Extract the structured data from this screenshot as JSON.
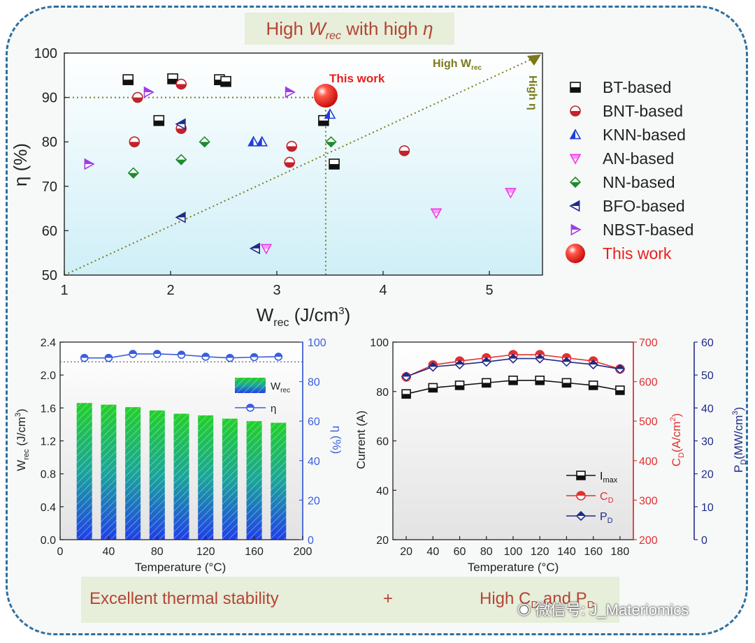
{
  "banner_top": {
    "prefix": "High ",
    "w": "W",
    "w_sub": "rec",
    "mid": " with high ",
    "eta": "η"
  },
  "banner_bottom": {
    "left": "Excellent thermal stability",
    "plus": "+",
    "right_prefix": "High C",
    "right_c_sub": "D",
    "right_and": " and P",
    "right_p_sub": "D"
  },
  "watermark": {
    "text": "微信号: J_Materiomics"
  },
  "colors": {
    "frame": "#2e6f9f",
    "banner_bg": "#e7eed9",
    "banner_text": "#b44437",
    "guide": "#7a7a1a",
    "bt": "#111111",
    "bnt": "#c2222a",
    "knn": "#1f3fd8",
    "an": "#ef36e8",
    "nn": "#1f8a2f",
    "bfo": "#1f2b88",
    "nbst": "#a23ae8",
    "this_work": "#e8201c",
    "eta_line": "#3a5ee0",
    "imax": "#111111",
    "cd": "#e23030",
    "pd": "#1f2b88"
  },
  "chart_data": [
    {
      "type": "scatter",
      "title": "",
      "xlabel": "W",
      "xlabel_sub": "rec",
      "xlabel_unit": " (J/cm",
      "xlabel_sup": "3",
      "xlabel_close": ")",
      "ylabel": "η (%)",
      "xlim": [
        1,
        5.5
      ],
      "ylim": [
        50,
        100
      ],
      "xticks": [
        "1",
        "2",
        "3",
        "4",
        "5"
      ],
      "yticks": [
        "50",
        "60",
        "70",
        "80",
        "90",
        "100"
      ],
      "annotations": {
        "this_work": "This work",
        "high_w": "High W",
        "high_w_sub": "rec",
        "high_eta": "High η"
      },
      "guides": {
        "eta_line": 90,
        "w_line": 3.46
      },
      "legend_position": "right",
      "series": [
        {
          "name": "BT-based",
          "marker": "square-half",
          "points": [
            [
              1.6,
              94
            ],
            [
              2.02,
              94.2
            ],
            [
              2.46,
              94
            ],
            [
              2.52,
              93.6
            ],
            [
              1.89,
              84.8
            ],
            [
              3.44,
              84.8
            ],
            [
              3.54,
              75
            ]
          ]
        },
        {
          "name": "BNT-based",
          "marker": "circle-half",
          "points": [
            [
              1.69,
              90
            ],
            [
              2.1,
              93
            ],
            [
              2.1,
              83
            ],
            [
              1.66,
              80
            ],
            [
              3.14,
              79
            ],
            [
              3.12,
              75.4
            ],
            [
              4.2,
              78
            ]
          ]
        },
        {
          "name": "KNN-based",
          "marker": "triangle-up",
          "points": [
            [
              2.78,
              80
            ],
            [
              2.86,
              80
            ],
            [
              3.5,
              86.2
            ]
          ]
        },
        {
          "name": "AN-based",
          "marker": "triangle-down",
          "points": [
            [
              2.9,
              56
            ],
            [
              4.5,
              64
            ],
            [
              5.2,
              68.6
            ]
          ]
        },
        {
          "name": "NN-based",
          "marker": "diamond-half",
          "points": [
            [
              1.65,
              73
            ],
            [
              2.1,
              76
            ],
            [
              2.32,
              80
            ],
            [
              3.51,
              80
            ]
          ]
        },
        {
          "name": "BFO-based",
          "marker": "triangle-left",
          "points": [
            [
              2.1,
              84
            ],
            [
              2.1,
              63
            ],
            [
              2.8,
              56
            ]
          ]
        },
        {
          "name": "NBST-based",
          "marker": "triangle-right",
          "points": [
            [
              1.23,
              75
            ],
            [
              1.79,
              91.2
            ],
            [
              3.12,
              91.2
            ]
          ]
        },
        {
          "name": "This work",
          "marker": "ball",
          "points": [
            [
              3.46,
              90.4
            ]
          ]
        }
      ]
    },
    {
      "type": "bar",
      "xlabel": "Temperature (°C)",
      "ylabel": "W",
      "ylabel_sub": "rec",
      "ylabel_unit": " (J/cm",
      "ylabel_sup": "3",
      "ylabel_close": ")",
      "y2label": "η (%)",
      "xlim": [
        0,
        200
      ],
      "ylim": [
        0,
        2.4
      ],
      "y2lim": [
        0,
        100
      ],
      "xticks": [
        "0",
        "40",
        "80",
        "120",
        "160",
        "200"
      ],
      "yticks": [
        "0.0",
        "0.4",
        "0.8",
        "1.2",
        "1.6",
        "2.0",
        "2.4"
      ],
      "y2ticks": [
        "0",
        "20",
        "40",
        "60",
        "80",
        "100"
      ],
      "categories": [
        20,
        40,
        60,
        80,
        100,
        120,
        140,
        160,
        180
      ],
      "series": [
        {
          "name": "W",
          "name_sub": "rec",
          "axis": "left",
          "values": [
            1.66,
            1.64,
            1.61,
            1.57,
            1.53,
            1.51,
            1.47,
            1.44,
            1.42
          ]
        },
        {
          "name": "η",
          "axis": "right",
          "values": [
            92,
            92,
            94,
            94,
            93.6,
            92.6,
            92,
            92.4,
            92.6
          ]
        }
      ],
      "guide": 90,
      "legend_position": "top-right"
    },
    {
      "type": "line",
      "xlabel": "Temperature (°C)",
      "ylabel": "Current (A)",
      "y2label": "C",
      "y2label_sub": "D",
      "y2label_unit": "(A/cm",
      "y2label_sup": "2",
      "y2label_close": ")",
      "y3label": "P",
      "y3label_sub": "D",
      "y3label_unit": "(MW/cm",
      "y3label_sup": "3",
      "y3label_close": ")",
      "xlim": [
        10,
        190
      ],
      "ylim": [
        20,
        100
      ],
      "y2lim": [
        200,
        700
      ],
      "y3lim": [
        0,
        60
      ],
      "xticks": [
        "20",
        "40",
        "60",
        "80",
        "100",
        "120",
        "140",
        "160",
        "180"
      ],
      "yticks": [
        "20",
        "40",
        "60",
        "80",
        "100"
      ],
      "y2ticks": [
        "200",
        "300",
        "400",
        "500",
        "600",
        "700"
      ],
      "y3ticks": [
        "0",
        "10",
        "20",
        "30",
        "40",
        "50",
        "60"
      ],
      "x": [
        20,
        40,
        60,
        80,
        100,
        120,
        140,
        160,
        180
      ],
      "series": [
        {
          "name": "I",
          "name_sub": "max",
          "axis": "left",
          "values": [
            79,
            81.5,
            82.5,
            83.5,
            84.5,
            84.5,
            83.5,
            82.5,
            80.5
          ]
        },
        {
          "name": "C",
          "name_sub": "D",
          "axis": "right",
          "values": [
            612,
            642,
            652,
            660,
            668,
            668,
            660,
            652,
            632
          ]
        },
        {
          "name": "P",
          "name_sub": "D",
          "axis": "right2",
          "values": [
            49.5,
            52.5,
            53.2,
            54,
            55,
            55,
            54,
            53.2,
            51.8
          ]
        }
      ],
      "legend_position": "bottom-right"
    }
  ]
}
